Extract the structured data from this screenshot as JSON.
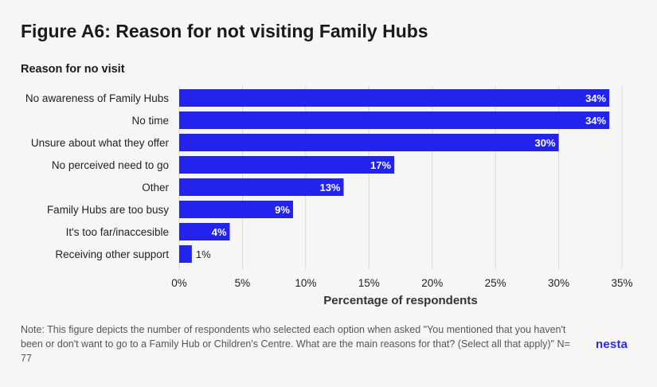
{
  "title": "Figure A6: Reason for not visiting Family Hubs",
  "note": "Note: This figure depicts the number of respondents who selected each option when asked \"You mentioned that you haven't been or don't want to go to a Family Hub or Children's Centre. What are the main reasons for that? (Select all that apply)\" N= 77",
  "logo": "nesta",
  "colors": {
    "bar": "#2323ee",
    "grid": "#d9dad8",
    "label_inside": "#ffffff",
    "label_outside": "#222222"
  },
  "chart_data": {
    "type": "bar",
    "orientation": "horizontal",
    "ylabel": "Reason for no visit",
    "xlabel": "Percentage of respondents",
    "categories": [
      "No awareness of Family Hubs",
      "No time",
      "Unsure about what they offer",
      "No perceived need to go",
      "Other",
      "Family Hubs are too busy",
      "It's too far/inaccesible",
      "Receiving other support"
    ],
    "values": [
      34,
      34,
      30,
      17,
      13,
      9,
      4,
      1
    ],
    "value_labels": [
      "34%",
      "34%",
      "30%",
      "17%",
      "13%",
      "9%",
      "4%",
      "1%"
    ],
    "xlim": [
      0,
      35
    ],
    "xticks": [
      0,
      5,
      10,
      15,
      20,
      25,
      30,
      35
    ],
    "xtick_labels": [
      "0%",
      "5%",
      "10%",
      "15%",
      "20%",
      "25%",
      "30%",
      "35%"
    ],
    "grid": true,
    "legend": "none"
  }
}
